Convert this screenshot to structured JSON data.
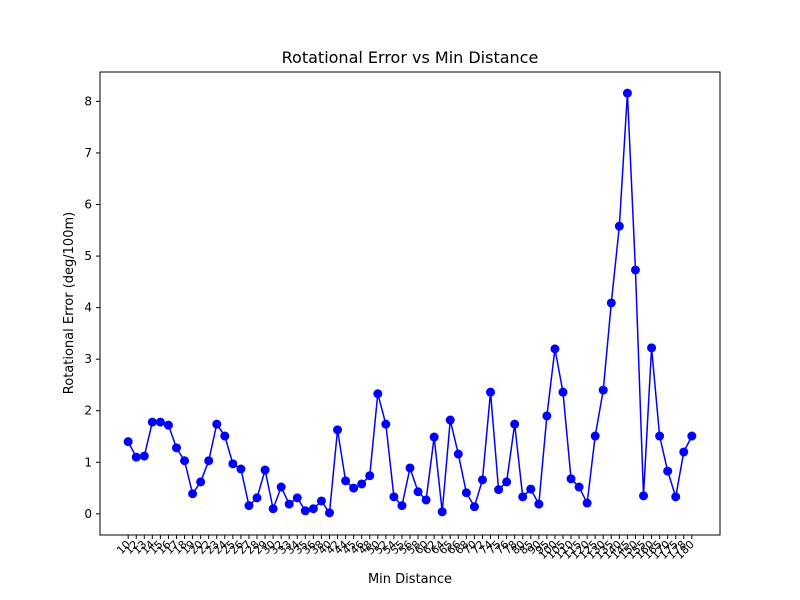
{
  "chart_data": {
    "type": "line",
    "title": "Rotational Error vs Min Distance",
    "x_label": "Min Distance",
    "y_label": "Rotational Error (deg/100m)",
    "categories": [
      "10",
      "12",
      "13",
      "14",
      "15",
      "16",
      "17",
      "18",
      "19",
      "20",
      "22",
      "23",
      "24",
      "25",
      "26",
      "27",
      "28",
      "29",
      "30",
      "32",
      "33",
      "34",
      "35",
      "36",
      "38",
      "40",
      "42",
      "44",
      "45",
      "46",
      "48",
      "50",
      "52",
      "54",
      "55",
      "56",
      "58",
      "60",
      "62",
      "64",
      "65",
      "66",
      "68",
      "70",
      "72",
      "74",
      "75",
      "76",
      "78",
      "80",
      "85",
      "90",
      "95",
      "100",
      "105",
      "110",
      "115",
      "120",
      "125",
      "130",
      "135",
      "140",
      "145",
      "150",
      "155",
      "160",
      "165",
      "170",
      "175",
      "178",
      "180"
    ],
    "series": [
      {
        "name": "Rotational Error",
        "color": "#0000ff",
        "values": [
          1.4,
          1.1,
          1.12,
          1.78,
          1.78,
          1.72,
          1.28,
          1.03,
          0.39,
          0.62,
          1.03,
          1.74,
          1.51,
          0.97,
          0.87,
          0.16,
          0.31,
          0.85,
          0.1,
          0.52,
          0.19,
          0.31,
          0.06,
          0.1,
          0.25,
          0.02,
          1.63,
          0.64,
          0.5,
          0.58,
          0.74,
          2.33,
          1.74,
          0.33,
          0.16,
          0.89,
          0.43,
          0.27,
          1.49,
          0.04,
          1.82,
          1.16,
          0.41,
          0.14,
          0.66,
          2.36,
          0.47,
          0.62,
          1.74,
          0.33,
          0.48,
          0.19,
          1.9,
          3.2,
          2.36,
          0.68,
          0.52,
          0.21,
          1.51,
          2.4,
          4.09,
          5.58,
          8.16,
          4.73,
          0.35,
          3.22,
          1.51,
          0.83,
          0.33,
          1.2,
          1.51
        ]
      }
    ],
    "ylim": [
      -0.41,
      8.57
    ],
    "yticks": [
      0,
      1,
      2,
      3,
      4,
      5,
      6,
      7,
      8
    ],
    "grid": false
  }
}
